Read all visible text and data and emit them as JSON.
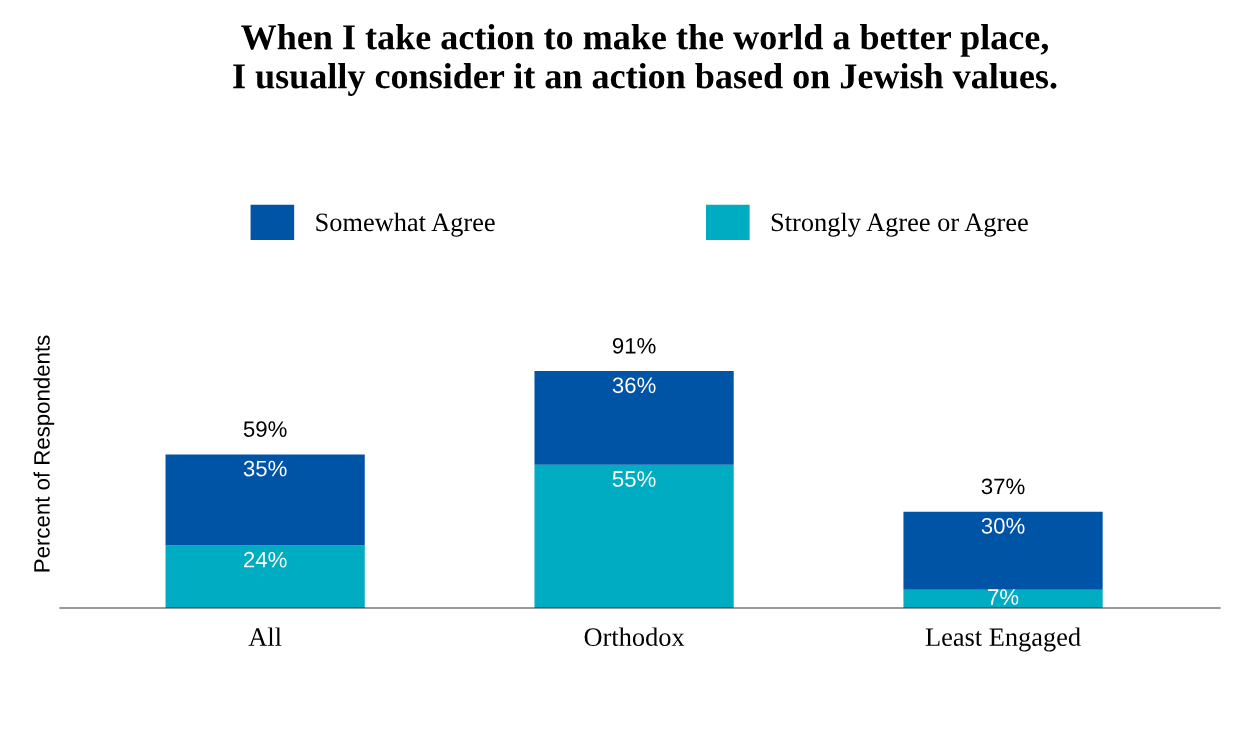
{
  "chart_data": {
    "type": "bar",
    "title": "When I take action to make the world a better place,\nI usually consider it an action based on Jewish values.",
    "ylabel": "Percent of Respondents",
    "categories": [
      "All",
      "Orthodox",
      "Least Engaged"
    ],
    "stacked": true,
    "series": [
      {
        "name": "Strongly Agree or Agree",
        "color": "#00acc1",
        "values": [
          24,
          55,
          7
        ],
        "value_labels": [
          "24%",
          "55%",
          "7%"
        ]
      },
      {
        "name": "Somewhat Agree",
        "color": "#0054a6",
        "values": [
          35,
          36,
          30
        ],
        "value_labels": [
          "35%",
          "36%",
          "30%"
        ]
      }
    ],
    "totals": [
      "59%",
      "91%",
      "37%"
    ],
    "tick_labels": "x",
    "legend": "top",
    "grid": false
  }
}
